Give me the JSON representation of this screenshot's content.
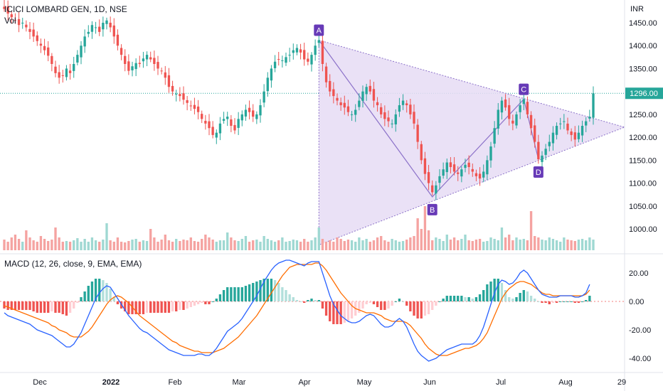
{
  "header": {
    "symbol_line": "ICICI LOMBARD GEN, 1D, NSE",
    "volume_label": "Vol",
    "macd_label": "MACD (12, 26, close, 9, EMA, EMA)",
    "currency": "INR"
  },
  "colors": {
    "up": "#26a69a",
    "down": "#ef5350",
    "vol_up": "#9fd8d2",
    "vol_down": "#f5a3a1",
    "macd_line": "#2962ff",
    "signal_line": "#ff6d00",
    "pattern_fill": "#e6dcf5",
    "pattern_stroke": "#8c72c9",
    "pattern_label_bg": "#673ab7",
    "price_badge": "#26a69a"
  },
  "price_axis": {
    "ticks": [
      "1450.00",
      "1400.00",
      "1350.00",
      "1300.00",
      "1250.00",
      "1200.00",
      "1150.00",
      "1100.00",
      "1050.00",
      "1000.00"
    ],
    "current": "1296.00"
  },
  "macd_axis": {
    "ticks": [
      "20.00",
      "0.00",
      "-20.00",
      "-40.00"
    ]
  },
  "time_axis": [
    "Dec",
    "2022",
    "Feb",
    "Mar",
    "Apr",
    "May",
    "Jun",
    "Jul",
    "Aug",
    "29"
  ],
  "chart_data": [
    {
      "type": "candlestick",
      "title": "ICICI LOMBARD GEN, 1D, NSE",
      "y_unit": "INR",
      "ylim": [
        960,
        1480
      ],
      "last_close": 1296,
      "pattern": {
        "shape": "triangle",
        "points": [
          {
            "label": "A",
            "date": "2022-04-19",
            "price": 1412
          },
          {
            "label": "B",
            "date": "2022-06-10",
            "price": 1070
          },
          {
            "label": "C",
            "date": "2022-07-20",
            "price": 1283
          },
          {
            "label": "D",
            "date": "2022-07-27",
            "price": 1152
          }
        ]
      },
      "series": [
        {
          "values": [
            1480,
            1470,
            1462,
            1455,
            1445,
            1450,
            1440,
            1430,
            1420,
            1410,
            1400,
            1390,
            1378,
            1360,
            1340,
            1330,
            1335,
            1350,
            1340,
            1360,
            1380,
            1400,
            1420,
            1430,
            1445,
            1440,
            1430,
            1450,
            1455,
            1440,
            1420,
            1400,
            1380,
            1360,
            1345,
            1355,
            1362,
            1360,
            1372,
            1380,
            1370,
            1360,
            1350,
            1345,
            1330,
            1310,
            1300,
            1295,
            1290,
            1282,
            1275,
            1268,
            1262,
            1255,
            1240,
            1230,
            1220,
            1205,
            1210,
            1230,
            1240,
            1245,
            1225,
            1215,
            1240,
            1250,
            1260,
            1255,
            1245,
            1250,
            1270,
            1300,
            1330,
            1350,
            1365,
            1370,
            1368,
            1375,
            1380,
            1390,
            1395,
            1385,
            1370,
            1365,
            1380,
            1400,
            1412,
            1360,
            1320,
            1300,
            1290,
            1280,
            1270,
            1265,
            1255,
            1250,
            1260,
            1280,
            1300,
            1310,
            1300,
            1280,
            1270,
            1250,
            1240,
            1235,
            1230,
            1250,
            1270,
            1280,
            1270,
            1250,
            1230,
            1190,
            1150,
            1120,
            1100,
            1080,
            1095,
            1115,
            1130,
            1145,
            1135,
            1125,
            1120,
            1130,
            1140,
            1135,
            1125,
            1115,
            1110,
            1125,
            1150,
            1180,
            1220,
            1260,
            1280,
            1265,
            1240,
            1230,
            1250,
            1270,
            1283,
            1250,
            1220,
            1190,
            1152,
            1160,
            1175,
            1190,
            1210,
            1225,
            1230,
            1235,
            1215,
            1205,
            1195,
            1210,
            1225,
            1235,
            1245,
            1296
          ]
        }
      ],
      "volume": [
        0.15,
        0.12,
        0.18,
        0.22,
        0.16,
        0.12,
        0.28,
        0.18,
        0.14,
        0.12,
        0.2,
        0.16,
        0.13,
        0.15,
        0.32,
        0.18,
        0.12,
        0.13,
        0.12,
        0.14,
        0.17,
        0.12,
        0.16,
        0.12,
        0.18,
        0.14,
        0.12,
        0.15,
        0.38,
        0.14,
        0.12,
        0.18,
        0.12,
        0.11,
        0.13,
        0.15,
        0.16,
        0.12,
        0.14,
        0.13,
        0.3,
        0.18,
        0.12,
        0.15,
        0.22,
        0.14,
        0.12,
        0.16,
        0.13,
        0.15,
        0.14,
        0.18,
        0.13,
        0.12,
        0.16,
        0.22,
        0.18,
        0.15,
        0.12,
        0.14,
        0.14,
        0.25,
        0.18,
        0.14,
        0.13,
        0.16,
        0.2,
        0.12,
        0.14,
        0.15,
        0.12,
        0.2,
        0.16,
        0.14,
        0.12,
        0.14,
        0.18,
        0.12,
        0.13,
        0.15,
        0.14,
        0.12,
        0.16,
        0.12,
        0.14,
        0.18,
        0.32,
        0.16,
        0.12,
        0.14,
        0.12,
        0.18,
        0.16,
        0.13,
        0.15,
        0.14,
        0.12,
        0.18,
        0.14,
        0.16,
        0.12,
        0.14,
        0.18,
        0.2,
        0.14,
        0.12,
        0.16,
        0.14,
        0.12,
        0.13,
        0.15,
        0.18,
        0.2,
        0.45,
        0.3,
        0.62,
        0.28,
        0.14,
        0.18,
        0.16,
        0.13,
        0.22,
        0.15,
        0.18,
        0.14,
        0.16,
        0.22,
        0.14,
        0.13,
        0.15,
        0.16,
        0.12,
        0.13,
        0.18,
        0.16,
        0.14,
        0.32,
        0.18,
        0.22,
        0.14,
        0.18,
        0.15,
        0.16,
        0.14,
        0.55,
        0.2,
        0.18,
        0.15,
        0.14,
        0.18,
        0.16,
        0.14,
        0.12,
        0.18,
        0.15,
        0.14,
        0.13,
        0.15,
        0.16,
        0.14,
        0.18,
        0.15,
        0.22
      ],
      "macd": [
        -8,
        -10,
        -11,
        -12,
        -13,
        -14,
        -15,
        -16,
        -18,
        -20,
        -21,
        -22,
        -23,
        -24,
        -26,
        -28,
        -30,
        -32,
        -32,
        -30,
        -26,
        -22,
        -16,
        -10,
        -4,
        2,
        6,
        9,
        11,
        10,
        6,
        2,
        -2,
        -6,
        -10,
        -13,
        -16,
        -19,
        -21,
        -22,
        -24,
        -26,
        -28,
        -30,
        -32,
        -34,
        -35,
        -36,
        -37,
        -38,
        -38,
        -38,
        -38,
        -37,
        -37,
        -38,
        -38,
        -36,
        -33,
        -29,
        -25,
        -21,
        -19,
        -17,
        -15,
        -12,
        -8,
        -4,
        0,
        4,
        9,
        14,
        18,
        22,
        25,
        27,
        28,
        29,
        29,
        28,
        27,
        26,
        25,
        27,
        28,
        28,
        28,
        20,
        12,
        4,
        -2,
        -6,
        -10,
        -12,
        -14,
        -15,
        -15,
        -14,
        -12,
        -10,
        -9,
        -10,
        -13,
        -16,
        -18,
        -18,
        -17,
        -14,
        -12,
        -14,
        -18,
        -24,
        -30,
        -35,
        -38,
        -40,
        -42,
        -41,
        -40,
        -38,
        -36,
        -34,
        -33,
        -32,
        -31,
        -30,
        -30,
        -30,
        -30,
        -28,
        -24,
        -18,
        -10,
        -2,
        6,
        12,
        15,
        14,
        12,
        13,
        16,
        20,
        22,
        20,
        16,
        12,
        8,
        5,
        4,
        3,
        3,
        3,
        4,
        4,
        4,
        4,
        3,
        3,
        4,
        6,
        12
      ],
      "signal": [
        -3,
        -4,
        -5,
        -6,
        -7,
        -8,
        -9,
        -10,
        -11,
        -12,
        -13,
        -14,
        -15,
        -17,
        -18,
        -20,
        -21,
        -22,
        -24,
        -25,
        -25,
        -25,
        -23,
        -21,
        -18,
        -14,
        -10,
        -6,
        -2,
        1,
        3,
        4,
        3,
        1,
        -1,
        -4,
        -7,
        -10,
        -12,
        -14,
        -16,
        -18,
        -20,
        -22,
        -24,
        -26,
        -28,
        -29,
        -31,
        -32,
        -33,
        -34,
        -35,
        -35,
        -36,
        -36,
        -36,
        -36,
        -35,
        -34,
        -33,
        -31,
        -29,
        -27,
        -25,
        -22,
        -19,
        -16,
        -13,
        -10,
        -6,
        -2,
        2,
        6,
        10,
        14,
        18,
        21,
        24,
        25,
        26,
        26,
        26,
        26,
        26,
        27,
        27,
        25,
        22,
        18,
        14,
        10,
        6,
        3,
        0,
        -3,
        -5,
        -6,
        -7,
        -8,
        -8,
        -8,
        -9,
        -10,
        -12,
        -13,
        -14,
        -14,
        -14,
        -14,
        -15,
        -17,
        -20,
        -23,
        -26,
        -30,
        -33,
        -35,
        -37,
        -38,
        -38,
        -38,
        -37,
        -36,
        -35,
        -34,
        -33,
        -33,
        -32,
        -31,
        -29,
        -26,
        -22,
        -16,
        -10,
        -4,
        2,
        6,
        9,
        11,
        13,
        14,
        14,
        13,
        12,
        10,
        8,
        6,
        5,
        5,
        4,
        4,
        4,
        4,
        4,
        4,
        4,
        4,
        4,
        5,
        8
      ]
    }
  ]
}
